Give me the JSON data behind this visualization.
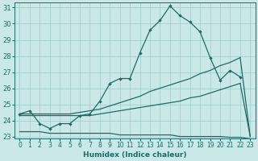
{
  "xlabel": "Humidex (Indice chaleur)",
  "xlim": [
    -0.5,
    23.5
  ],
  "ylim": [
    22.9,
    31.3
  ],
  "xticks": [
    0,
    1,
    2,
    3,
    4,
    5,
    6,
    7,
    8,
    9,
    10,
    11,
    12,
    13,
    14,
    15,
    16,
    17,
    18,
    19,
    20,
    21,
    22,
    23
  ],
  "yticks": [
    23,
    24,
    25,
    26,
    27,
    28,
    29,
    30,
    31
  ],
  "bg_color": "#cbe8e8",
  "line_color": "#1e6b65",
  "grid_color": "#a8cece",
  "lines": [
    {
      "x": [
        0,
        1,
        2,
        3,
        4,
        5,
        6,
        7,
        8,
        9,
        10,
        11,
        12,
        13,
        14,
        15,
        16,
        17,
        18,
        19,
        20,
        21,
        22
      ],
      "y": [
        24.4,
        24.6,
        23.8,
        23.5,
        23.8,
        23.8,
        24.3,
        24.4,
        25.2,
        26.3,
        26.6,
        26.6,
        28.2,
        29.6,
        30.2,
        31.1,
        30.5,
        30.1,
        29.5,
        27.9,
        26.5,
        27.1,
        26.7
      ],
      "marker": true
    },
    {
      "x": [
        0,
        1,
        2,
        3,
        4,
        5,
        6,
        7,
        8,
        9,
        10,
        11,
        12,
        13,
        14,
        15,
        16,
        17,
        18,
        19,
        20,
        21,
        22,
        23
      ],
      "y": [
        24.4,
        24.4,
        24.4,
        24.4,
        24.4,
        24.4,
        24.5,
        24.6,
        24.7,
        24.9,
        25.1,
        25.3,
        25.5,
        25.8,
        26.0,
        26.2,
        26.4,
        26.6,
        26.9,
        27.1,
        27.4,
        27.6,
        27.9,
        23.0
      ],
      "marker": false,
      "break_at": 22
    },
    {
      "x": [
        0,
        1,
        2,
        3,
        4,
        5,
        6,
        7,
        8,
        9,
        10,
        11,
        12,
        13,
        14,
        15,
        16,
        17,
        18,
        19,
        20,
        21,
        22,
        23
      ],
      "y": [
        24.3,
        24.3,
        24.3,
        24.3,
        24.3,
        24.3,
        24.3,
        24.3,
        24.4,
        24.5,
        24.6,
        24.7,
        24.8,
        24.9,
        25.0,
        25.1,
        25.2,
        25.4,
        25.5,
        25.7,
        25.9,
        26.1,
        26.3,
        23.0
      ],
      "marker": false,
      "break_at": 22
    },
    {
      "x": [
        0,
        1,
        2,
        3,
        4,
        5,
        6,
        7,
        8,
        9,
        10,
        11,
        12,
        13,
        14,
        15,
        16,
        17,
        18,
        19,
        20,
        21,
        22,
        23
      ],
      "y": [
        23.3,
        23.3,
        23.3,
        23.2,
        23.2,
        23.2,
        23.2,
        23.2,
        23.2,
        23.2,
        23.1,
        23.1,
        23.1,
        23.1,
        23.1,
        23.1,
        23.0,
        23.0,
        23.0,
        23.0,
        23.0,
        22.95,
        22.95,
        22.85
      ],
      "marker": false,
      "break_at": null
    }
  ]
}
